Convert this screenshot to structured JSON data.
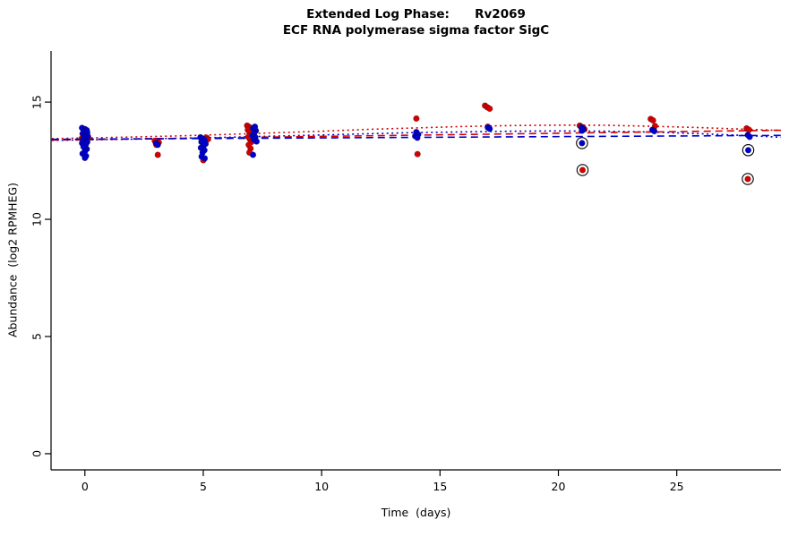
{
  "title": {
    "line1": "Extended Log Phase:      Rv2069",
    "line2": "ECF RNA polymerase sigma factor SigC"
  },
  "chart_data": {
    "type": "scatter",
    "title": "Extended Log Phase:      Rv2069",
    "subtitle": "ECF RNA polymerase sigma factor SigC",
    "xlabel": "Time  (days)",
    "ylabel": "Abundance  (log2 RPMHEG)",
    "xlim": [
      -1.43,
      29.4
    ],
    "ylim": [
      -0.69,
      17.18
    ],
    "x_ticks": [
      0,
      5,
      10,
      15,
      20,
      25
    ],
    "y_ticks": [
      0,
      5,
      10,
      15
    ],
    "grid": false,
    "colors": {
      "red_series": "#d40000",
      "blue_series": "#0000cd",
      "outlier_ring": "#000000",
      "axis": "#000000"
    },
    "series": [
      {
        "name": "red-points",
        "color": "#d40000",
        "points": [
          [
            0.14,
            13.5
          ],
          [
            -0.14,
            13.44
          ],
          [
            0.1,
            13.4
          ],
          [
            2.95,
            13.35
          ],
          [
            3.02,
            13.18
          ],
          [
            3.08,
            12.75
          ],
          [
            3.12,
            13.28
          ],
          [
            5.14,
            13.48
          ],
          [
            5.2,
            13.42
          ],
          [
            5.0,
            12.52
          ],
          [
            6.85,
            14.0
          ],
          [
            6.92,
            13.95
          ],
          [
            7.0,
            13.9
          ],
          [
            6.88,
            13.82
          ],
          [
            6.95,
            13.72
          ],
          [
            7.02,
            13.62
          ],
          [
            6.9,
            13.52
          ],
          [
            6.97,
            13.42
          ],
          [
            7.04,
            13.3
          ],
          [
            6.92,
            13.18
          ],
          [
            7.0,
            13.02
          ],
          [
            6.95,
            12.85
          ],
          [
            14.0,
            14.3
          ],
          [
            14.05,
            12.78
          ],
          [
            16.9,
            14.85
          ],
          [
            17.0,
            14.78
          ],
          [
            17.1,
            14.72
          ],
          [
            17.02,
            13.95
          ],
          [
            20.9,
            14.0
          ],
          [
            20.97,
            13.95
          ],
          [
            21.05,
            13.9
          ],
          [
            21.1,
            13.84
          ],
          [
            21.02,
            12.1
          ],
          [
            23.9,
            14.28
          ],
          [
            24.0,
            14.22
          ],
          [
            24.08,
            13.98
          ],
          [
            27.95,
            13.88
          ],
          [
            28.05,
            13.82
          ],
          [
            28.0,
            11.72
          ]
        ]
      },
      {
        "name": "blue-points",
        "color": "#0000cd",
        "points": [
          [
            -0.12,
            13.9
          ],
          [
            0.0,
            13.85
          ],
          [
            0.08,
            13.8
          ],
          [
            -0.05,
            13.75
          ],
          [
            0.1,
            13.7
          ],
          [
            -0.1,
            13.65
          ],
          [
            0.03,
            13.6
          ],
          [
            0.12,
            13.55
          ],
          [
            -0.03,
            13.5
          ],
          [
            0.06,
            13.45
          ],
          [
            -0.08,
            13.4
          ],
          [
            0.0,
            13.35
          ],
          [
            0.1,
            13.3
          ],
          [
            -0.12,
            13.25
          ],
          [
            0.04,
            13.2
          ],
          [
            -0.06,
            13.1
          ],
          [
            0.08,
            13.0
          ],
          [
            0.0,
            12.9
          ],
          [
            -0.1,
            12.8
          ],
          [
            0.05,
            12.7
          ],
          [
            0.0,
            12.62
          ],
          [
            3.0,
            13.25
          ],
          [
            3.08,
            13.18
          ],
          [
            4.88,
            13.5
          ],
          [
            4.97,
            13.45
          ],
          [
            5.05,
            13.38
          ],
          [
            4.92,
            13.3
          ],
          [
            5.1,
            13.22
          ],
          [
            5.0,
            13.12
          ],
          [
            4.9,
            13.05
          ],
          [
            5.05,
            12.95
          ],
          [
            4.97,
            12.85
          ],
          [
            4.93,
            12.68
          ],
          [
            5.06,
            12.6
          ],
          [
            7.18,
            13.95
          ],
          [
            7.1,
            13.88
          ],
          [
            7.22,
            13.78
          ],
          [
            7.15,
            13.68
          ],
          [
            7.08,
            13.58
          ],
          [
            7.2,
            13.5
          ],
          [
            7.12,
            13.42
          ],
          [
            7.25,
            13.32
          ],
          [
            7.1,
            12.75
          ],
          [
            14.0,
            13.72
          ],
          [
            14.08,
            13.62
          ],
          [
            13.95,
            13.55
          ],
          [
            14.04,
            13.48
          ],
          [
            17.02,
            13.92
          ],
          [
            17.1,
            13.86
          ],
          [
            20.97,
            13.92
          ],
          [
            21.05,
            13.85
          ],
          [
            21.0,
            13.78
          ],
          [
            21.0,
            13.25
          ],
          [
            23.97,
            13.82
          ],
          [
            24.05,
            13.76
          ],
          [
            28.0,
            13.6
          ],
          [
            28.08,
            13.52
          ],
          [
            28.02,
            12.95
          ]
        ]
      }
    ],
    "outlier_rings": [
      [
        21.0,
        13.25
      ],
      [
        21.02,
        12.1
      ],
      [
        28.02,
        12.95
      ],
      [
        28.0,
        11.72
      ]
    ],
    "trend_lines": [
      {
        "name": "red-loess",
        "color": "#d40000",
        "style": "dotted",
        "points": [
          [
            -1.4,
            13.44
          ],
          [
            0,
            13.47
          ],
          [
            2,
            13.51
          ],
          [
            4,
            13.56
          ],
          [
            6,
            13.62
          ],
          [
            8,
            13.69
          ],
          [
            10,
            13.76
          ],
          [
            12,
            13.84
          ],
          [
            14,
            13.9
          ],
          [
            16,
            13.96
          ],
          [
            18,
            14.0
          ],
          [
            20,
            14.02
          ],
          [
            22,
            14.01
          ],
          [
            24,
            13.97
          ],
          [
            26,
            13.91
          ],
          [
            28,
            13.84
          ],
          [
            29.4,
            13.79
          ]
        ]
      },
      {
        "name": "blue-loess",
        "color": "#0000cd",
        "style": "dotted",
        "points": [
          [
            -1.4,
            13.37
          ],
          [
            0,
            13.39
          ],
          [
            2,
            13.42
          ],
          [
            4,
            13.46
          ],
          [
            6,
            13.5
          ],
          [
            8,
            13.55
          ],
          [
            10,
            13.6
          ],
          [
            12,
            13.65
          ],
          [
            14,
            13.7
          ],
          [
            16,
            13.73
          ],
          [
            18,
            13.76
          ],
          [
            20,
            13.77
          ],
          [
            22,
            13.76
          ],
          [
            24,
            13.72
          ],
          [
            26,
            13.65
          ],
          [
            28,
            13.57
          ],
          [
            29.4,
            13.5
          ]
        ]
      },
      {
        "name": "red-linear",
        "color": "#d40000",
        "style": "dashed",
        "points": [
          [
            -1.4,
            13.38
          ],
          [
            29.4,
            13.8
          ]
        ]
      },
      {
        "name": "blue-linear",
        "color": "#0000cd",
        "style": "dashed",
        "points": [
          [
            -1.4,
            13.41
          ],
          [
            29.4,
            13.58
          ]
        ]
      }
    ]
  }
}
